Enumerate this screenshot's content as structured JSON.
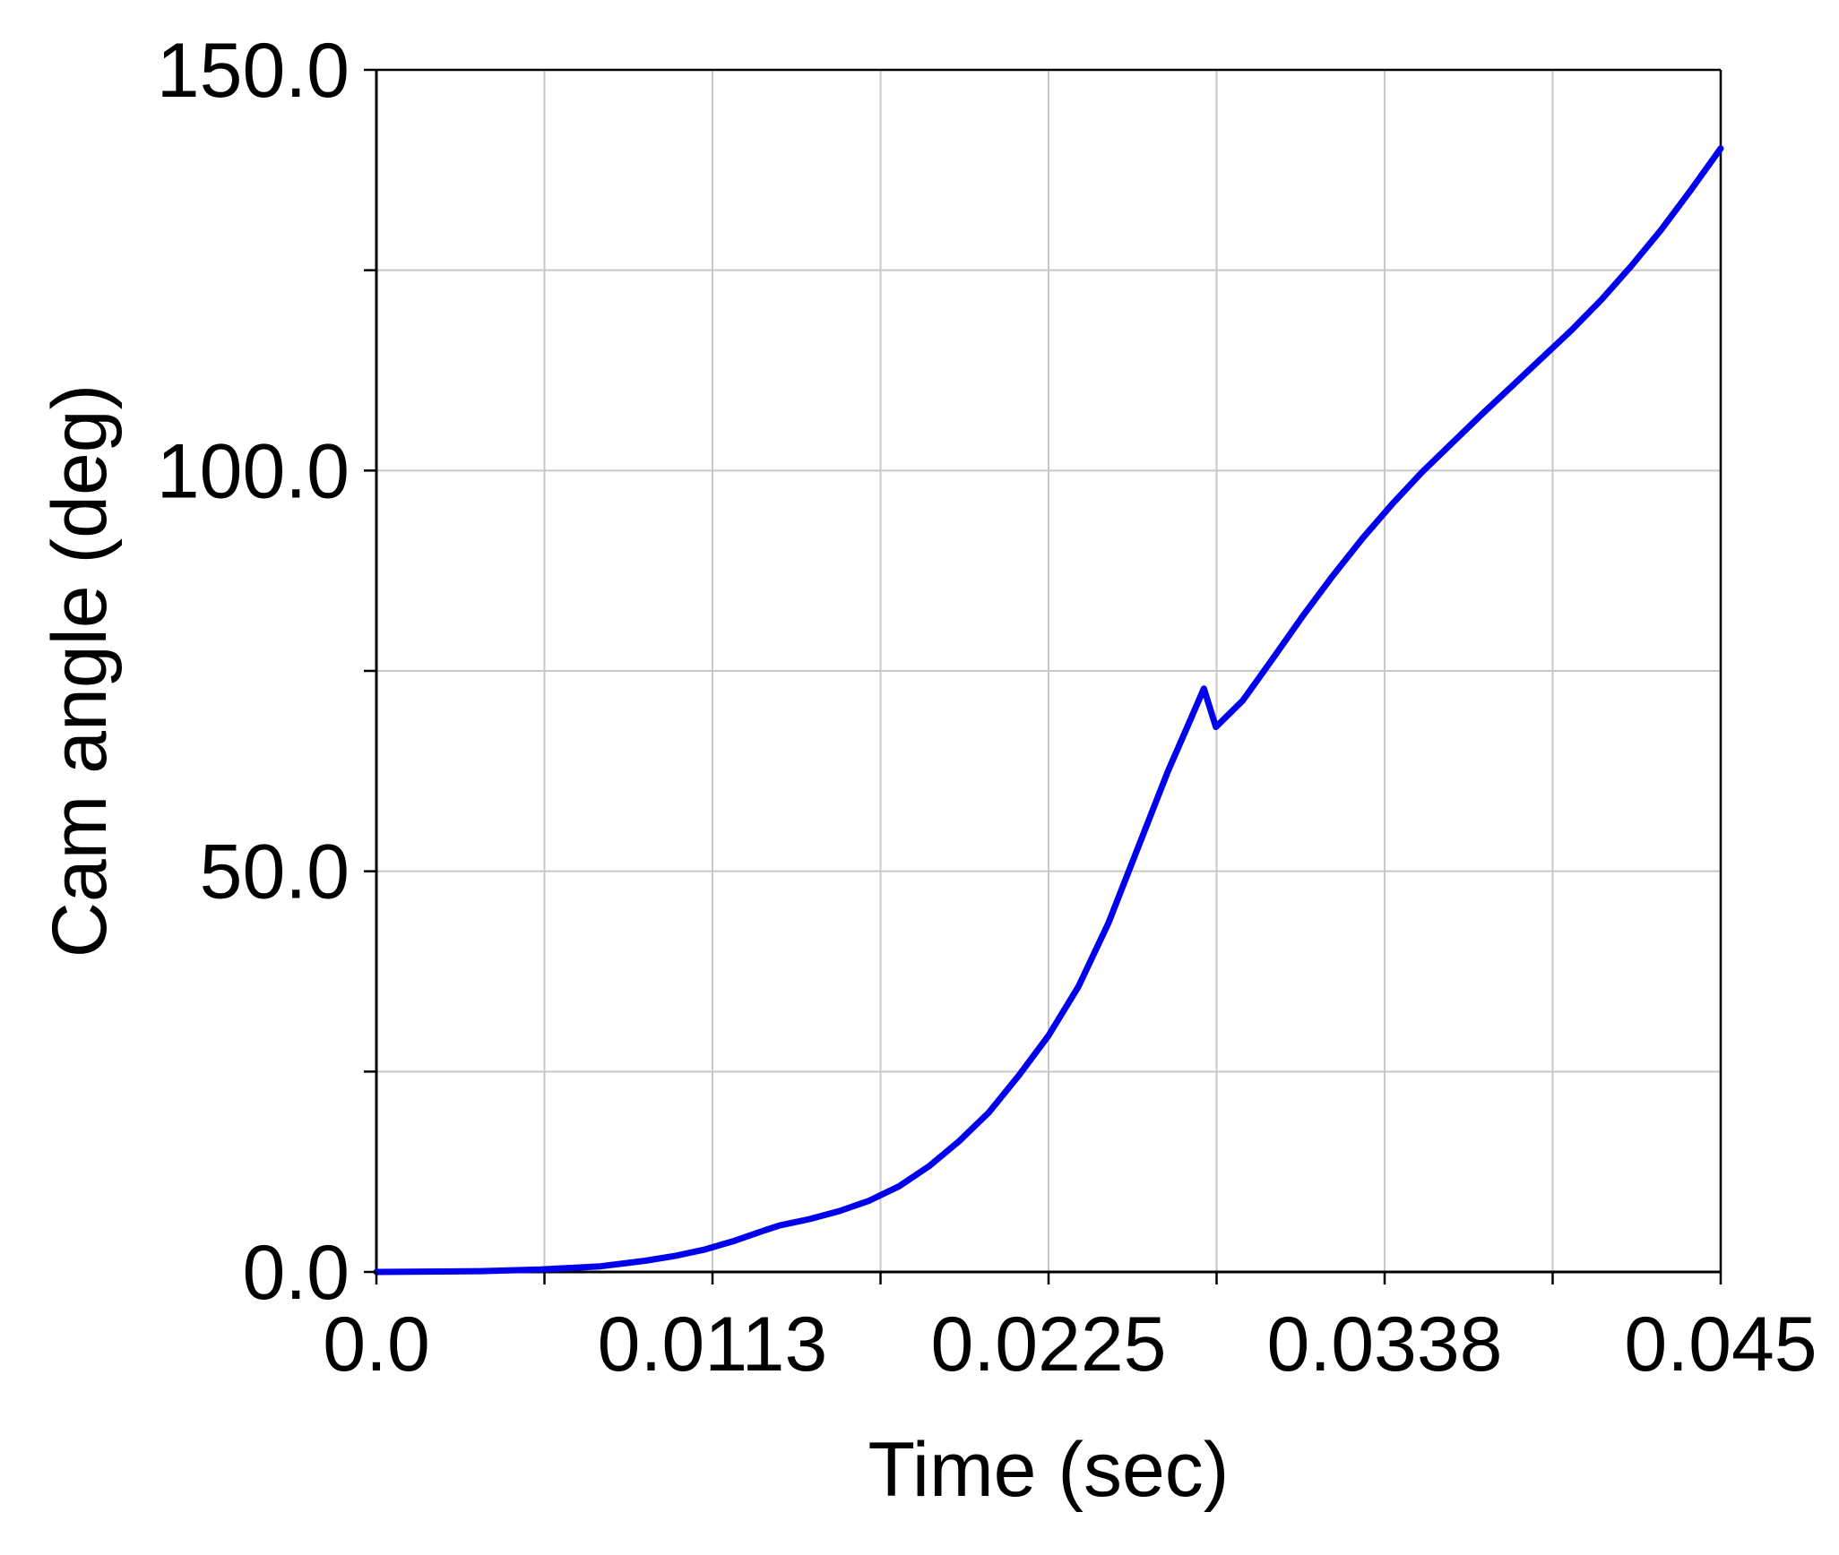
{
  "chart_data": {
    "type": "line",
    "title": "",
    "xlabel": "Time (sec)",
    "ylabel": "Cam angle (deg)",
    "xlim": [
      0.0,
      0.045
    ],
    "ylim": [
      0.0,
      150.0
    ],
    "x_tick_values": [
      0.0,
      0.01125,
      0.0225,
      0.03375,
      0.045
    ],
    "x_tick_labels": [
      "0.0",
      "0.0113",
      "0.0225",
      "0.0338",
      "0.045"
    ],
    "x_minor_ticks": [
      0.005625,
      0.016875,
      0.028125,
      0.039375
    ],
    "y_tick_values": [
      0.0,
      50.0,
      100.0,
      150.0
    ],
    "y_tick_labels": [
      "0.0",
      "50.0",
      "100.0",
      "150.0"
    ],
    "y_minor_ticks": [
      25.0,
      75.0,
      125.0
    ],
    "grid": true,
    "legend": "none",
    "series": [
      {
        "color": "#0000ee",
        "x": [
          0.0,
          0.0035,
          0.0055,
          0.0075,
          0.009,
          0.01,
          0.011,
          0.012,
          0.013,
          0.0135,
          0.0145,
          0.0155,
          0.0165,
          0.0175,
          0.0185,
          0.0195,
          0.0205,
          0.0215,
          0.0225,
          0.0235,
          0.0245,
          0.0255,
          0.0265,
          0.0272,
          0.0277,
          0.0281,
          0.029,
          0.03,
          0.031,
          0.032,
          0.033,
          0.034,
          0.035,
          0.036,
          0.037,
          0.038,
          0.039,
          0.04,
          0.041,
          0.042,
          0.043,
          0.044,
          0.045
        ],
        "y": [
          0.0,
          0.1,
          0.3,
          0.7,
          1.4,
          2.0,
          2.8,
          3.9,
          5.2,
          5.8,
          6.6,
          7.6,
          8.9,
          10.7,
          13.2,
          16.3,
          19.9,
          24.5,
          29.5,
          35.6,
          43.5,
          53.0,
          62.5,
          68.5,
          72.8,
          68.0,
          71.3,
          76.5,
          81.8,
          86.8,
          91.5,
          95.8,
          99.8,
          103.4,
          107.0,
          110.5,
          114.0,
          117.5,
          121.3,
          125.5,
          130.0,
          135.0,
          140.2
        ]
      }
    ]
  }
}
